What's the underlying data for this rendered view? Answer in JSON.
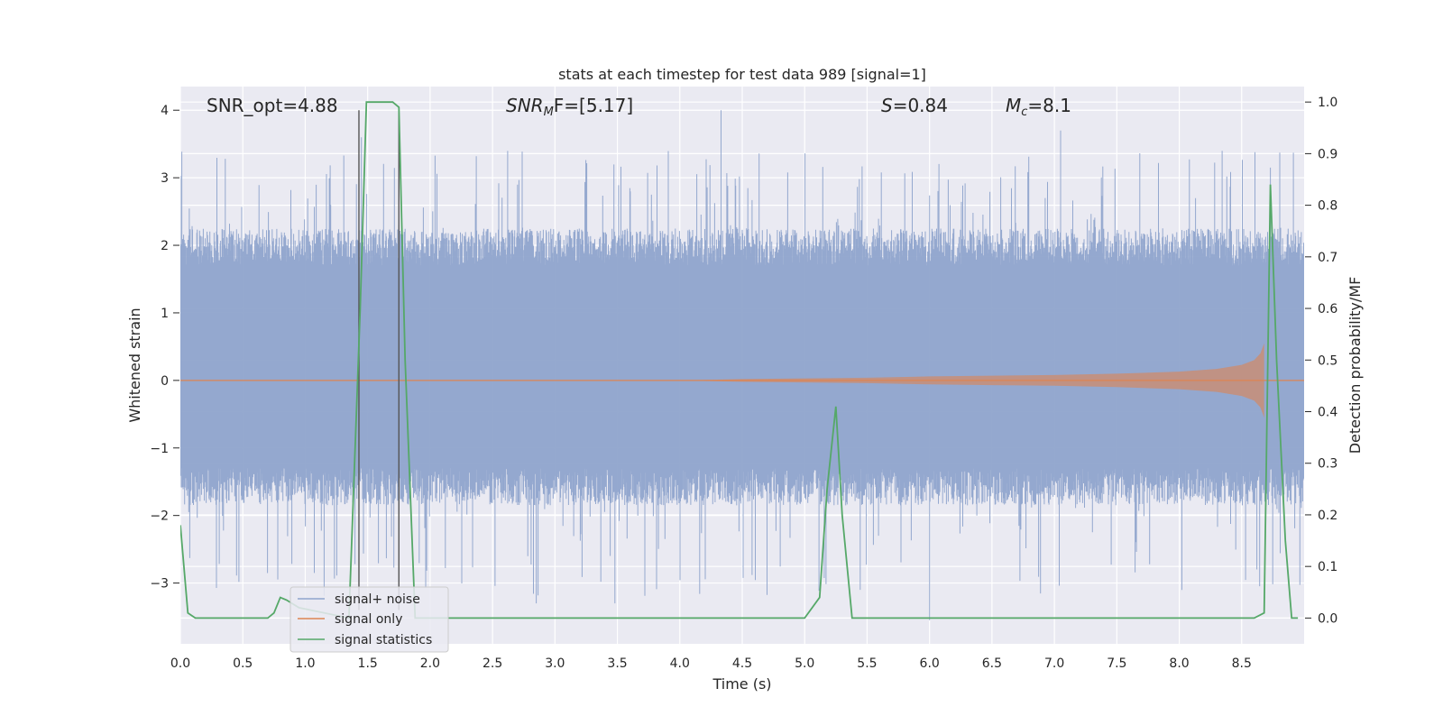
{
  "chart_data": {
    "type": "line",
    "title": "stats at each timestep for test data 989 [signal=1]",
    "xlabel": "Time (s)",
    "ylabel": "Whitened strain",
    "ylabel_right": "Detection probability/MF",
    "xlim": [
      0,
      9
    ],
    "ylim": [
      -3.9,
      4.35
    ],
    "ylim_right": [
      -0.05,
      1.03
    ],
    "x_ticks": [
      0.0,
      0.5,
      1.0,
      1.5,
      2.0,
      2.5,
      3.0,
      3.5,
      4.0,
      4.5,
      5.0,
      5.5,
      6.0,
      6.5,
      7.0,
      7.5,
      8.0,
      8.5
    ],
    "x_tick_labels": [
      "0.0",
      "0.5",
      "1.0",
      "1.5",
      "2.0",
      "2.5",
      "3.0",
      "3.5",
      "4.0",
      "4.5",
      "5.0",
      "5.5",
      "6.0",
      "6.5",
      "7.0",
      "7.5",
      "8.0",
      "8.5"
    ],
    "y_ticks": [
      4,
      3,
      2,
      1,
      0,
      -1,
      -2,
      -3
    ],
    "y_tick_labels": [
      "4",
      "3",
      "2",
      "1",
      "0",
      "−1",
      "−2",
      "−3"
    ],
    "y_ticks_right": [
      1.0,
      0.9,
      0.8,
      0.7,
      0.6,
      0.5,
      0.4,
      0.3,
      0.2,
      0.1,
      0.0
    ],
    "y_tick_labels_right": [
      "1.0",
      "0.9",
      "0.8",
      "0.7",
      "0.6",
      "0.5",
      "0.4",
      "0.3",
      "0.2",
      "0.1",
      "0.0"
    ],
    "grid": true,
    "legend_position": "lower-left",
    "annotations": {
      "snr_opt": "SNR_opt=4.88",
      "snr_mf_base": "SNR",
      "snr_mf_sub": "M",
      "snr_mf_rest": "F=[5.17]",
      "s_base": "S",
      "s_rest": "=0.84",
      "mc_base": "M",
      "mc_sub": "c",
      "mc_rest": "=8.1"
    },
    "vertical_markers_s": [
      1.43,
      1.75
    ],
    "series": [
      {
        "name": "signal+ noise",
        "color": "#8fa4cc",
        "axis": "left",
        "description_values": {
          "typical_band": [
            -1.3,
            1.7
          ],
          "peak_points": [
            [
              1.45,
              3.6
            ],
            [
              1.75,
              2.3
            ],
            [
              2.85,
              -3.3
            ],
            [
              3.48,
              -3.3
            ],
            [
              4.33,
              4.0
            ],
            [
              6.0,
              -3.55
            ],
            [
              7.05,
              3.7
            ],
            [
              8.73,
              3.15
            ]
          ]
        }
      },
      {
        "name": "signal only",
        "color": "#dd8452",
        "axis": "left",
        "envelope": {
          "x": [
            0.0,
            4.0,
            4.5,
            5.0,
            5.5,
            6.0,
            6.5,
            7.0,
            7.5,
            8.0,
            8.3,
            8.5,
            8.6,
            8.65,
            8.68
          ],
          "amplitude": [
            0.0,
            0.0,
            0.02,
            0.03,
            0.04,
            0.06,
            0.07,
            0.08,
            0.1,
            0.13,
            0.17,
            0.23,
            0.3,
            0.4,
            0.55
          ]
        }
      },
      {
        "name": "signal statistics",
        "color": "#55a868",
        "axis": "right",
        "x": [
          0.0,
          0.06,
          0.12,
          0.25,
          0.5,
          0.7,
          0.75,
          0.8,
          0.85,
          0.95,
          1.35,
          1.44,
          1.49,
          1.55,
          1.7,
          1.75,
          1.8,
          1.88,
          1.95,
          5.0,
          5.12,
          5.18,
          5.25,
          5.3,
          5.38,
          5.45,
          8.6,
          8.68,
          8.73,
          8.78,
          8.85,
          8.9,
          8.95
        ],
        "values": [
          0.18,
          0.01,
          0.0,
          0.0,
          0.0,
          0.0,
          0.01,
          0.04,
          0.035,
          0.02,
          0.0,
          0.6,
          1.0,
          1.0,
          1.0,
          0.99,
          0.5,
          0.0,
          0.0,
          0.0,
          0.04,
          0.25,
          0.41,
          0.2,
          0.0,
          0.0,
          0.0,
          0.01,
          0.84,
          0.5,
          0.15,
          0.0,
          0.0
        ]
      }
    ]
  }
}
